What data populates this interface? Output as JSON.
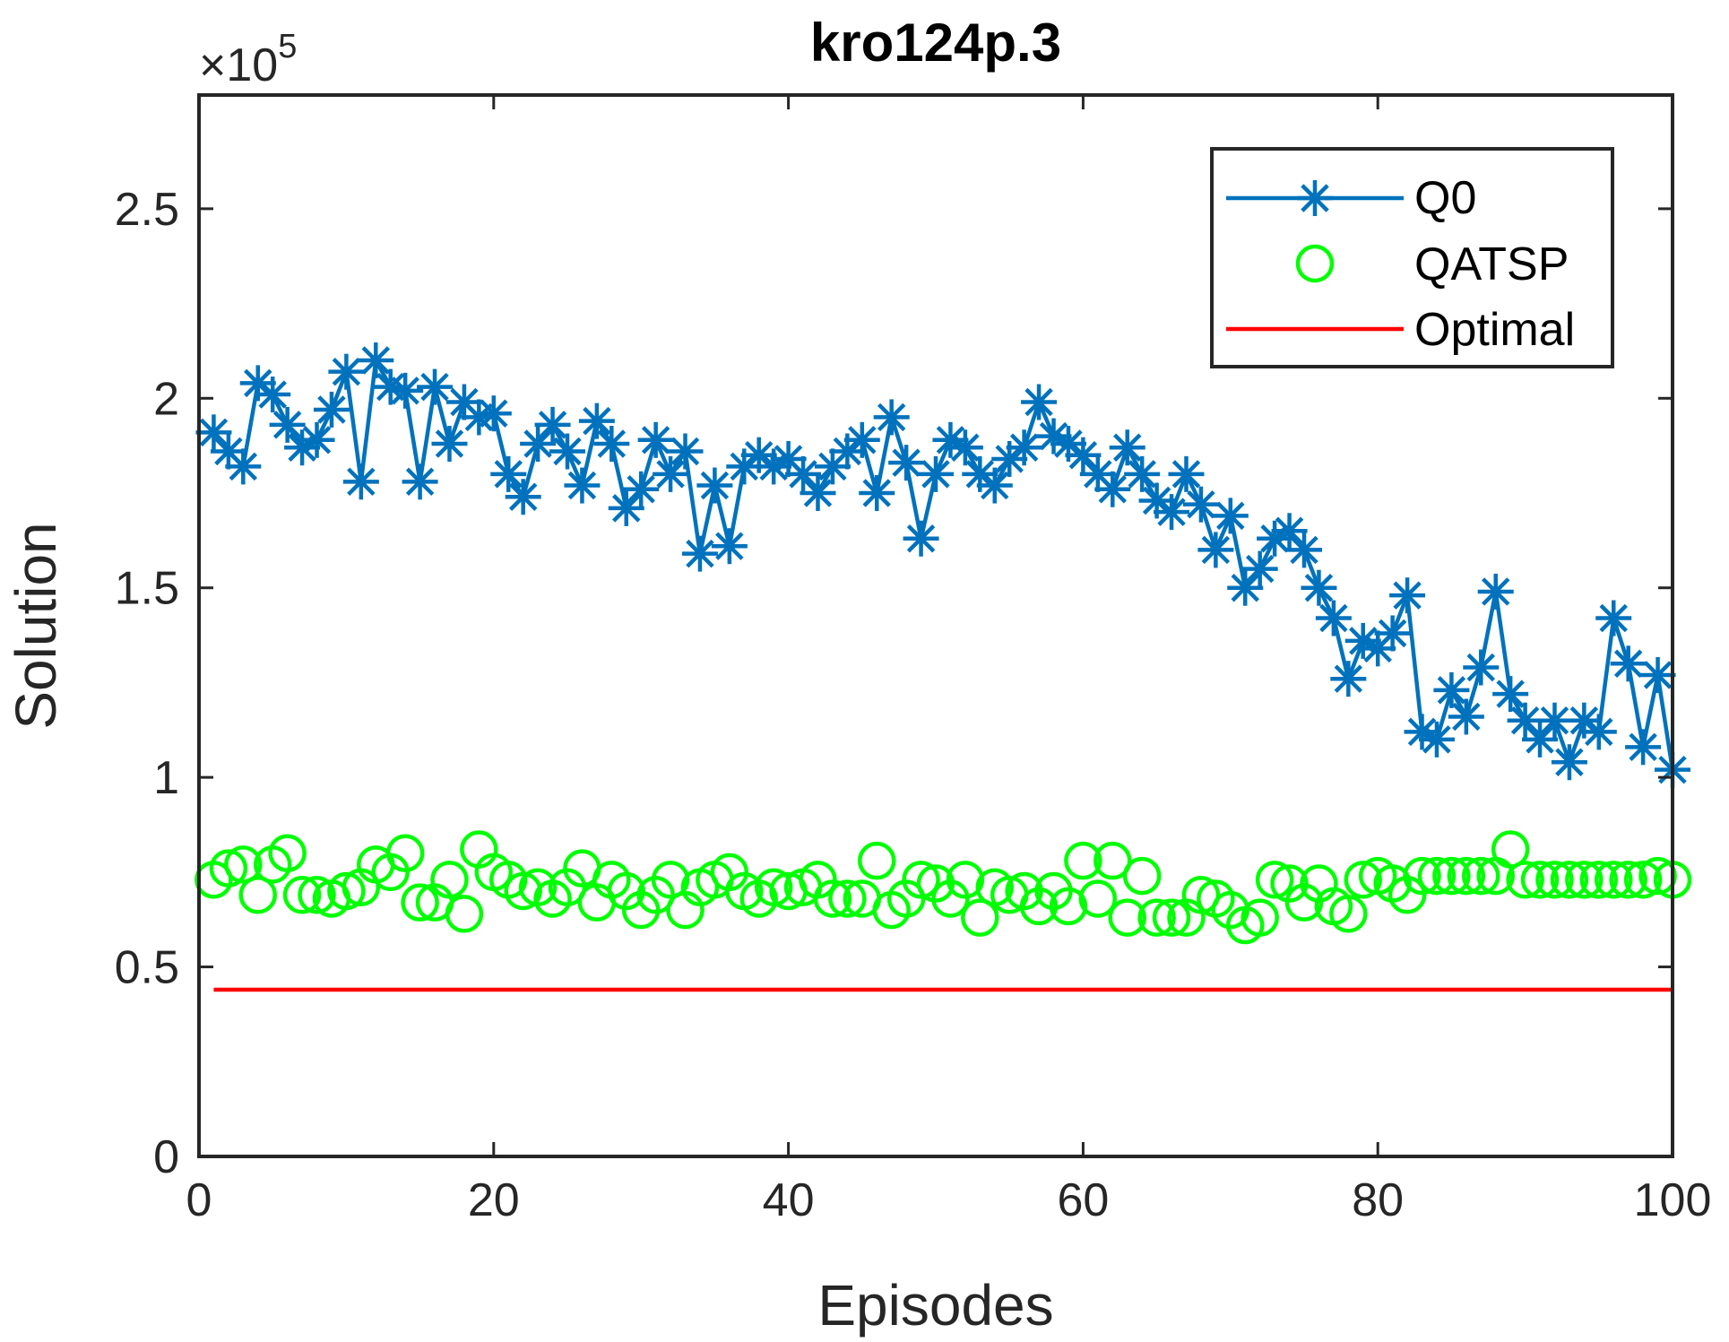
{
  "chart_data": {
    "type": "line",
    "title": "kro124p.3",
    "xlabel": "Episodes",
    "ylabel": "Solution",
    "y_scale_multiplier": "×10",
    "y_scale_exponent": "5",
    "xlim": [
      0,
      100
    ],
    "ylim": [
      0,
      2.8
    ],
    "xticks": [
      0,
      20,
      40,
      60,
      80,
      100
    ],
    "xtick_labels": [
      "0",
      "20",
      "40",
      "60",
      "80",
      "100"
    ],
    "yticks": [
      0,
      0.5,
      1,
      1.5,
      2,
      2.5
    ],
    "ytick_labels": [
      "0",
      "0.5",
      "1",
      "1.5",
      "2",
      "2.5"
    ],
    "grid": false,
    "legend_position": "top-right",
    "x": [
      1,
      2,
      3,
      4,
      5,
      6,
      7,
      8,
      9,
      10,
      11,
      12,
      13,
      14,
      15,
      16,
      17,
      18,
      19,
      20,
      21,
      22,
      23,
      24,
      25,
      26,
      27,
      28,
      29,
      30,
      31,
      32,
      33,
      34,
      35,
      36,
      37,
      38,
      39,
      40,
      41,
      42,
      43,
      44,
      45,
      46,
      47,
      48,
      49,
      50,
      51,
      52,
      53,
      54,
      55,
      56,
      57,
      58,
      59,
      60,
      61,
      62,
      63,
      64,
      65,
      66,
      67,
      68,
      69,
      70,
      71,
      72,
      73,
      74,
      75,
      76,
      77,
      78,
      79,
      80,
      81,
      82,
      83,
      84,
      85,
      86,
      87,
      88,
      89,
      90,
      91,
      92,
      93,
      94,
      95,
      96,
      97,
      98,
      99,
      100
    ],
    "series": [
      {
        "name": "Q0",
        "color": "#0072BD",
        "marker": "asterisk",
        "line": true,
        "values": [
          1.91,
          1.86,
          1.82,
          2.04,
          2.01,
          1.93,
          1.87,
          1.89,
          1.97,
          2.07,
          1.78,
          2.1,
          2.03,
          2.02,
          1.78,
          2.03,
          1.88,
          1.99,
          1.95,
          1.96,
          1.8,
          1.74,
          1.88,
          1.93,
          1.86,
          1.77,
          1.94,
          1.88,
          1.71,
          1.76,
          1.89,
          1.8,
          1.86,
          1.59,
          1.77,
          1.61,
          1.82,
          1.85,
          1.82,
          1.84,
          1.8,
          1.75,
          1.82,
          1.86,
          1.89,
          1.75,
          1.95,
          1.83,
          1.63,
          1.8,
          1.89,
          1.87,
          1.8,
          1.77,
          1.84,
          1.87,
          1.99,
          1.9,
          1.88,
          1.85,
          1.8,
          1.76,
          1.87,
          1.8,
          1.73,
          1.7,
          1.8,
          1.72,
          1.6,
          1.69,
          1.5,
          1.55,
          1.63,
          1.65,
          1.6,
          1.5,
          1.42,
          1.26,
          1.36,
          1.34,
          1.38,
          1.48,
          1.12,
          1.1,
          1.23,
          1.16,
          1.29,
          1.49,
          1.22,
          1.15,
          1.1,
          1.15,
          1.04,
          1.15,
          1.12,
          1.42,
          1.3,
          1.08,
          1.27,
          1.02
        ]
      },
      {
        "name": "QATSP",
        "color": "#00FF00",
        "marker": "circle",
        "line": false,
        "values": [
          0.73,
          0.76,
          0.77,
          0.69,
          0.77,
          0.8,
          0.69,
          0.69,
          0.68,
          0.7,
          0.71,
          0.77,
          0.75,
          0.8,
          0.67,
          0.67,
          0.73,
          0.64,
          0.81,
          0.75,
          0.73,
          0.7,
          0.71,
          0.68,
          0.71,
          0.76,
          0.67,
          0.73,
          0.7,
          0.65,
          0.69,
          0.73,
          0.65,
          0.71,
          0.73,
          0.75,
          0.7,
          0.68,
          0.71,
          0.7,
          0.71,
          0.73,
          0.68,
          0.68,
          0.68,
          0.78,
          0.65,
          0.68,
          0.73,
          0.72,
          0.68,
          0.73,
          0.63,
          0.71,
          0.69,
          0.7,
          0.66,
          0.7,
          0.66,
          0.78,
          0.68,
          0.78,
          0.63,
          0.74,
          0.63,
          0.63,
          0.63,
          0.69,
          0.68,
          0.65,
          0.61,
          0.63,
          0.73,
          0.72,
          0.67,
          0.72,
          0.66,
          0.64,
          0.73,
          0.74,
          0.72,
          0.69,
          0.74,
          0.74,
          0.74,
          0.74,
          0.74,
          0.74,
          0.81,
          0.73,
          0.73,
          0.73,
          0.73,
          0.73,
          0.73,
          0.73,
          0.73,
          0.73,
          0.74,
          0.73
        ]
      },
      {
        "name": "Optimal",
        "color": "#FF0000",
        "marker": "none",
        "line": true,
        "values": [
          0.44,
          0.44
        ],
        "x": [
          1,
          100
        ]
      }
    ]
  }
}
